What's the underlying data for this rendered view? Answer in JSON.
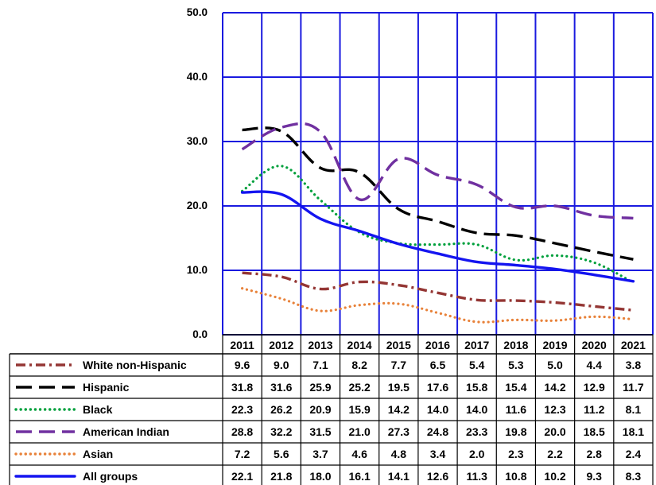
{
  "chart_data": {
    "type": "line",
    "ylim": [
      0,
      50
    ],
    "yticks": [
      "0.0",
      "10.0",
      "20.0",
      "30.0",
      "40.0",
      "50.0"
    ],
    "grid": true,
    "legend_placement": "data-table-left",
    "x": [
      "2011",
      "2012",
      "2013",
      "2014",
      "2015",
      "2016",
      "2017",
      "2018",
      "2019",
      "2020",
      "2021"
    ],
    "series": [
      {
        "name": "White non-Hispanic",
        "color": "#943634",
        "dash": "dash-dot",
        "values": [
          9.6,
          9.0,
          7.1,
          8.2,
          7.7,
          6.5,
          5.4,
          5.3,
          5.0,
          4.4,
          3.8
        ],
        "labels": [
          "9.6",
          "9.0",
          "7.1",
          "8.2",
          "7.7",
          "6.5",
          "5.4",
          "5.3",
          "5.0",
          "4.4",
          "3.8"
        ]
      },
      {
        "name": "Hispanic",
        "color": "#000000",
        "dash": "long-dash",
        "values": [
          31.8,
          31.6,
          25.9,
          25.2,
          19.5,
          17.6,
          15.8,
          15.4,
          14.2,
          12.9,
          11.7
        ],
        "labels": [
          "31.8",
          "31.6",
          "25.9",
          "25.2",
          "19.5",
          "17.6",
          "15.8",
          "15.4",
          "14.2",
          "12.9",
          "11.7"
        ]
      },
      {
        "name": "Black",
        "color": "#00a03c",
        "dash": "dotted",
        "values": [
          22.3,
          26.2,
          20.9,
          15.9,
          14.2,
          14.0,
          14.0,
          11.6,
          12.3,
          11.2,
          8.1
        ],
        "labels": [
          "22.3",
          "26.2",
          "20.9",
          "15.9",
          "14.2",
          "14.0",
          "14.0",
          "11.6",
          "12.3",
          "11.2",
          "8.1"
        ]
      },
      {
        "name": "American Indian",
        "color": "#7030a0",
        "dash": "long-dash",
        "values": [
          28.8,
          32.2,
          31.5,
          21.0,
          27.3,
          24.8,
          23.3,
          19.8,
          20.0,
          18.5,
          18.1
        ],
        "labels": [
          "28.8",
          "32.2",
          "31.5",
          "21.0",
          "27.3",
          "24.8",
          "23.3",
          "19.8",
          "20.0",
          "18.5",
          "18.1"
        ]
      },
      {
        "name": "Asian",
        "color": "#e8823a",
        "dash": "dotted",
        "values": [
          7.2,
          5.6,
          3.7,
          4.6,
          4.8,
          3.4,
          2.0,
          2.3,
          2.2,
          2.8,
          2.4
        ],
        "labels": [
          "7.2",
          "5.6",
          "3.7",
          "4.6",
          "4.8",
          "3.4",
          "2.0",
          "2.3",
          "2.2",
          "2.8",
          "2.4"
        ]
      },
      {
        "name": "All groups",
        "color": "#1414f0",
        "dash": "solid",
        "values": [
          22.1,
          21.8,
          18.0,
          16.1,
          14.1,
          12.6,
          11.3,
          10.8,
          10.2,
          9.3,
          8.3
        ],
        "labels": [
          "22.1",
          "21.8",
          "18.0",
          "16.1",
          "14.1",
          "12.6",
          "11.3",
          "10.8",
          "10.2",
          "9.3",
          "8.3"
        ]
      }
    ]
  }
}
